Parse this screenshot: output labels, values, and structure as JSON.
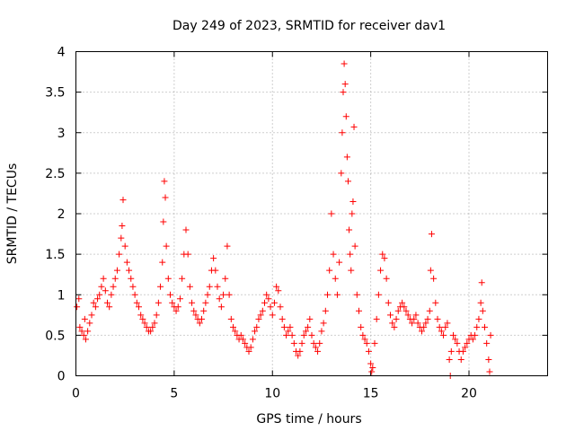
{
  "chart_data": {
    "type": "scatter",
    "title": "Day 249 of 2023, SRMTID for receiver dav1",
    "xlabel": "GPS time / hours",
    "ylabel": "SRMTID / TECUs",
    "xlim": [
      0,
      24
    ],
    "ylim": [
      0,
      4
    ],
    "xticks": [
      0,
      5,
      10,
      15,
      20
    ],
    "yticks": [
      0,
      0.5,
      1,
      1.5,
      2,
      2.5,
      3,
      3.5,
      4
    ],
    "xtick_labels": [
      "0",
      "5",
      "10",
      "15",
      "20"
    ],
    "ytick_labels": [
      "0",
      "0.5",
      "1",
      "1.5",
      "2",
      "2.5",
      "3",
      "3.5",
      "4"
    ],
    "grid": true,
    "marker": "+",
    "color": "#ff0000",
    "series": [
      {
        "name": "SRMTID",
        "points": [
          [
            0.05,
            0.85
          ],
          [
            0.15,
            0.95
          ],
          [
            0.2,
            0.6
          ],
          [
            0.3,
            0.55
          ],
          [
            0.4,
            0.5
          ],
          [
            0.45,
            0.7
          ],
          [
            0.5,
            0.45
          ],
          [
            0.6,
            0.55
          ],
          [
            0.7,
            0.65
          ],
          [
            0.8,
            0.75
          ],
          [
            0.9,
            0.9
          ],
          [
            1.0,
            0.85
          ],
          [
            1.1,
            0.95
          ],
          [
            1.2,
            1.0
          ],
          [
            1.3,
            1.1
          ],
          [
            1.4,
            1.2
          ],
          [
            1.5,
            1.05
          ],
          [
            1.6,
            0.9
          ],
          [
            1.7,
            0.85
          ],
          [
            1.8,
            1.0
          ],
          [
            1.9,
            1.1
          ],
          [
            2.0,
            1.2
          ],
          [
            2.1,
            1.3
          ],
          [
            2.2,
            1.5
          ],
          [
            2.3,
            1.7
          ],
          [
            2.35,
            1.85
          ],
          [
            2.4,
            2.17
          ],
          [
            2.5,
            1.6
          ],
          [
            2.6,
            1.4
          ],
          [
            2.7,
            1.3
          ],
          [
            2.8,
            1.2
          ],
          [
            2.9,
            1.1
          ],
          [
            3.0,
            1.0
          ],
          [
            3.1,
            0.9
          ],
          [
            3.2,
            0.85
          ],
          [
            3.3,
            0.75
          ],
          [
            3.4,
            0.7
          ],
          [
            3.5,
            0.65
          ],
          [
            3.6,
            0.6
          ],
          [
            3.7,
            0.55
          ],
          [
            3.8,
            0.55
          ],
          [
            3.9,
            0.6
          ],
          [
            4.0,
            0.65
          ],
          [
            4.1,
            0.75
          ],
          [
            4.2,
            0.9
          ],
          [
            4.3,
            1.1
          ],
          [
            4.4,
            1.4
          ],
          [
            4.45,
            1.9
          ],
          [
            4.5,
            2.4
          ],
          [
            4.55,
            2.2
          ],
          [
            4.6,
            1.6
          ],
          [
            4.7,
            1.2
          ],
          [
            4.8,
            1.0
          ],
          [
            4.9,
            0.9
          ],
          [
            5.0,
            0.85
          ],
          [
            5.1,
            0.8
          ],
          [
            5.2,
            0.85
          ],
          [
            5.3,
            0.95
          ],
          [
            5.4,
            1.2
          ],
          [
            5.5,
            1.5
          ],
          [
            5.6,
            1.8
          ],
          [
            5.7,
            1.5
          ],
          [
            5.8,
            1.1
          ],
          [
            5.9,
            0.9
          ],
          [
            6.0,
            0.8
          ],
          [
            6.1,
            0.75
          ],
          [
            6.2,
            0.7
          ],
          [
            6.3,
            0.65
          ],
          [
            6.4,
            0.7
          ],
          [
            6.5,
            0.8
          ],
          [
            6.6,
            0.9
          ],
          [
            6.7,
            1.0
          ],
          [
            6.8,
            1.1
          ],
          [
            6.9,
            1.3
          ],
          [
            7.0,
            1.45
          ],
          [
            7.1,
            1.3
          ],
          [
            7.2,
            1.1
          ],
          [
            7.3,
            0.95
          ],
          [
            7.4,
            0.85
          ],
          [
            7.5,
            1.0
          ],
          [
            7.6,
            1.2
          ],
          [
            7.7,
            1.6
          ],
          [
            7.8,
            1.0
          ],
          [
            7.9,
            0.7
          ],
          [
            8.0,
            0.6
          ],
          [
            8.1,
            0.55
          ],
          [
            8.2,
            0.5
          ],
          [
            8.3,
            0.45
          ],
          [
            8.4,
            0.5
          ],
          [
            8.5,
            0.45
          ],
          [
            8.6,
            0.4
          ],
          [
            8.7,
            0.35
          ],
          [
            8.8,
            0.3
          ],
          [
            8.9,
            0.35
          ],
          [
            9.0,
            0.45
          ],
          [
            9.1,
            0.55
          ],
          [
            9.2,
            0.6
          ],
          [
            9.3,
            0.7
          ],
          [
            9.4,
            0.75
          ],
          [
            9.5,
            0.8
          ],
          [
            9.6,
            0.9
          ],
          [
            9.7,
            1.0
          ],
          [
            9.8,
            0.95
          ],
          [
            9.9,
            0.85
          ],
          [
            10.0,
            0.75
          ],
          [
            10.1,
            0.9
          ],
          [
            10.2,
            1.1
          ],
          [
            10.3,
            1.05
          ],
          [
            10.4,
            0.85
          ],
          [
            10.5,
            0.7
          ],
          [
            10.6,
            0.6
          ],
          [
            10.7,
            0.5
          ],
          [
            10.8,
            0.55
          ],
          [
            10.9,
            0.6
          ],
          [
            11.0,
            0.5
          ],
          [
            11.1,
            0.4
          ],
          [
            11.2,
            0.3
          ],
          [
            11.3,
            0.25
          ],
          [
            11.4,
            0.3
          ],
          [
            11.5,
            0.4
          ],
          [
            11.6,
            0.5
          ],
          [
            11.7,
            0.55
          ],
          [
            11.8,
            0.6
          ],
          [
            11.9,
            0.7
          ],
          [
            12.0,
            0.5
          ],
          [
            12.1,
            0.4
          ],
          [
            12.2,
            0.35
          ],
          [
            12.3,
            0.3
          ],
          [
            12.4,
            0.4
          ],
          [
            12.5,
            0.55
          ],
          [
            12.6,
            0.65
          ],
          [
            12.7,
            0.8
          ],
          [
            12.8,
            1.0
          ],
          [
            12.9,
            1.3
          ],
          [
            13.0,
            2.0
          ],
          [
            13.1,
            1.5
          ],
          [
            13.2,
            1.2
          ],
          [
            13.3,
            1.0
          ],
          [
            13.4,
            1.4
          ],
          [
            13.5,
            2.5
          ],
          [
            13.55,
            3.0
          ],
          [
            13.6,
            3.5
          ],
          [
            13.65,
            3.85
          ],
          [
            13.7,
            3.6
          ],
          [
            13.75,
            3.2
          ],
          [
            13.8,
            2.7
          ],
          [
            13.85,
            2.4
          ],
          [
            13.9,
            1.8
          ],
          [
            13.95,
            1.5
          ],
          [
            14.0,
            1.3
          ],
          [
            14.05,
            2.0
          ],
          [
            14.1,
            2.15
          ],
          [
            14.15,
            3.07
          ],
          [
            14.2,
            1.6
          ],
          [
            14.3,
            1.0
          ],
          [
            14.4,
            0.8
          ],
          [
            14.5,
            0.6
          ],
          [
            14.6,
            0.5
          ],
          [
            14.7,
            0.45
          ],
          [
            14.8,
            0.4
          ],
          [
            14.9,
            0.3
          ],
          [
            15.0,
            0.15
          ],
          [
            15.05,
            0.05
          ],
          [
            15.1,
            0.1
          ],
          [
            15.2,
            0.4
          ],
          [
            15.3,
            0.7
          ],
          [
            15.4,
            1.0
          ],
          [
            15.5,
            1.3
          ],
          [
            15.6,
            1.5
          ],
          [
            15.7,
            1.45
          ],
          [
            15.8,
            1.2
          ],
          [
            15.9,
            0.9
          ],
          [
            16.0,
            0.75
          ],
          [
            16.1,
            0.65
          ],
          [
            16.2,
            0.6
          ],
          [
            16.3,
            0.7
          ],
          [
            16.4,
            0.8
          ],
          [
            16.5,
            0.85
          ],
          [
            16.6,
            0.9
          ],
          [
            16.7,
            0.85
          ],
          [
            16.8,
            0.8
          ],
          [
            16.9,
            0.75
          ],
          [
            17.0,
            0.7
          ],
          [
            17.1,
            0.65
          ],
          [
            17.2,
            0.7
          ],
          [
            17.3,
            0.75
          ],
          [
            17.4,
            0.65
          ],
          [
            17.5,
            0.6
          ],
          [
            17.6,
            0.55
          ],
          [
            17.7,
            0.6
          ],
          [
            17.8,
            0.65
          ],
          [
            17.9,
            0.7
          ],
          [
            18.0,
            0.8
          ],
          [
            18.05,
            1.3
          ],
          [
            18.1,
            1.75
          ],
          [
            18.2,
            1.2
          ],
          [
            18.3,
            0.9
          ],
          [
            18.4,
            0.7
          ],
          [
            18.5,
            0.6
          ],
          [
            18.6,
            0.55
          ],
          [
            18.7,
            0.5
          ],
          [
            18.8,
            0.6
          ],
          [
            18.9,
            0.65
          ],
          [
            19.0,
            0.2
          ],
          [
            19.05,
            0.0
          ],
          [
            19.1,
            0.3
          ],
          [
            19.2,
            0.5
          ],
          [
            19.3,
            0.45
          ],
          [
            19.4,
            0.4
          ],
          [
            19.5,
            0.3
          ],
          [
            19.6,
            0.2
          ],
          [
            19.7,
            0.3
          ],
          [
            19.8,
            0.35
          ],
          [
            19.9,
            0.4
          ],
          [
            20.0,
            0.45
          ],
          [
            20.1,
            0.5
          ],
          [
            20.2,
            0.45
          ],
          [
            20.3,
            0.5
          ],
          [
            20.4,
            0.6
          ],
          [
            20.5,
            0.7
          ],
          [
            20.6,
            0.9
          ],
          [
            20.65,
            1.15
          ],
          [
            20.7,
            0.8
          ],
          [
            20.8,
            0.6
          ],
          [
            20.9,
            0.4
          ],
          [
            21.0,
            0.2
          ],
          [
            21.05,
            0.05
          ],
          [
            21.1,
            0.5
          ]
        ]
      }
    ]
  }
}
